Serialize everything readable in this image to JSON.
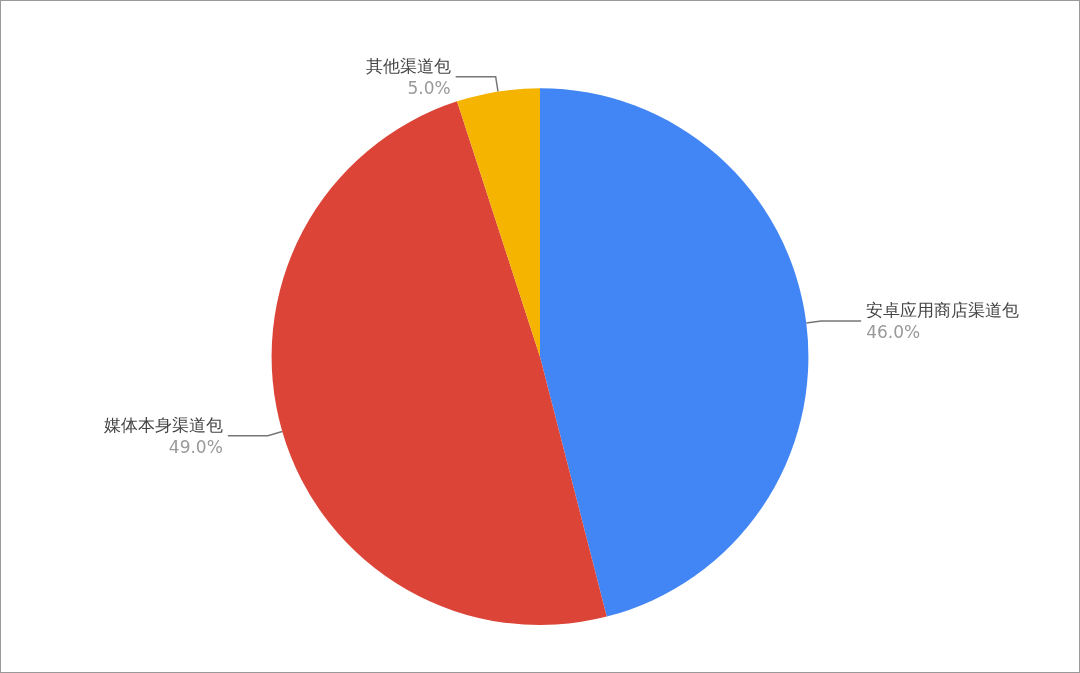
{
  "chart_data": {
    "type": "pie",
    "categories": [
      "安卓应用商店渠道包",
      "媒体本身渠道包",
      "其他渠道包"
    ],
    "values": [
      46,
      49,
      5
    ],
    "value_labels": [
      "46.0%",
      "49.0%",
      "5.0%"
    ],
    "colors": [
      "#4285f4",
      "#db4437",
      "#f4b400"
    ],
    "legend": false
  }
}
